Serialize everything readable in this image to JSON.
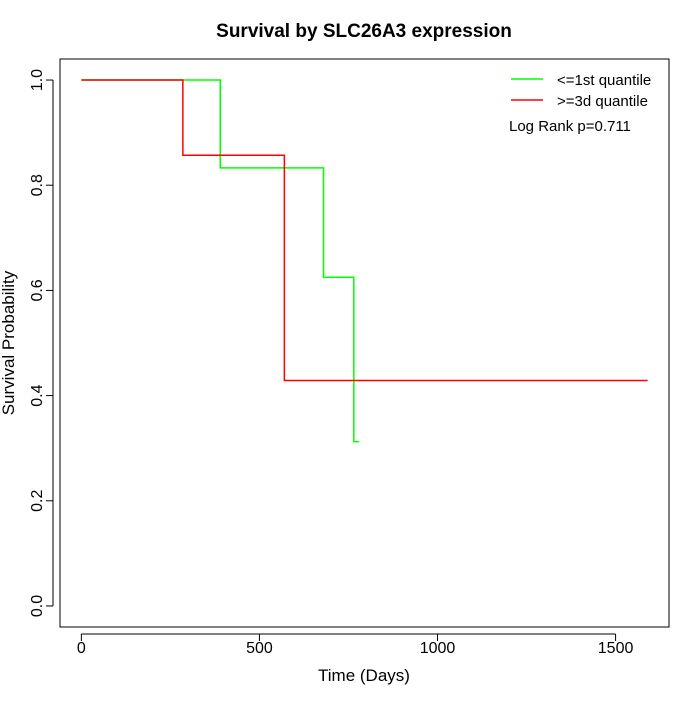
{
  "chart_data": {
    "type": "line",
    "title": "Survival by SLC26A3 expression",
    "xlabel": "Time (Days)",
    "ylabel": "Survival Probability",
    "xlim": [
      -60,
      1650
    ],
    "ylim": [
      -0.04,
      1.04
    ],
    "x_ticks": [
      0,
      500,
      1000,
      1500
    ],
    "y_ticks": [
      0.0,
      0.2,
      0.4,
      0.6,
      0.8,
      1.0
    ],
    "x_tick_labels": [
      "0",
      "500",
      "1000",
      "1500"
    ],
    "y_tick_labels": [
      "0.0",
      "0.2",
      "0.4",
      "0.6",
      "0.8",
      "1.0"
    ],
    "grid": false,
    "legend_position": "top-right",
    "series": [
      {
        "name": "<=1st quantile",
        "color": "#00ff00",
        "step": true,
        "x": [
          0,
          390,
          680,
          765,
          780
        ],
        "y": [
          1.0,
          0.833,
          0.625,
          0.3125,
          0.3125
        ]
      },
      {
        "name": ">=3d quantile",
        "color": "#ff0000",
        "step": true,
        "x": [
          0,
          285,
          570,
          1590
        ],
        "y": [
          1.0,
          0.857,
          0.4286,
          0.4286
        ]
      }
    ],
    "annotation": "Log Rank p=0.711"
  }
}
